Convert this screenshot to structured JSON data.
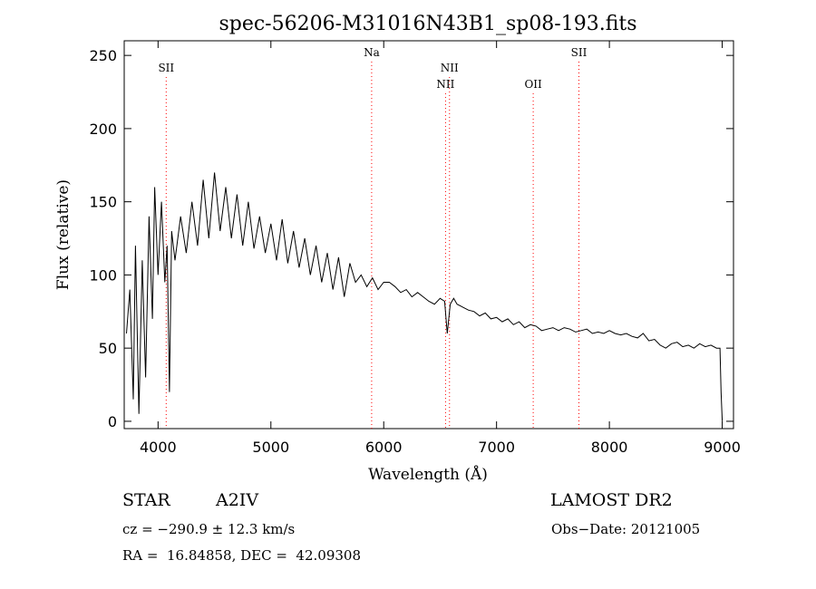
{
  "chart_data": {
    "type": "line",
    "title": "spec-56206-M31016N43B1_sp08-193.fits",
    "xlabel": "Wavelength (Å)",
    "ylabel": "Flux (relative)",
    "xlim": [
      3700,
      9100
    ],
    "ylim": [
      -5,
      260
    ],
    "xticks": [
      4000,
      5000,
      6000,
      7000,
      8000,
      9000
    ],
    "yticks": [
      0,
      50,
      100,
      150,
      200,
      250
    ],
    "grid": false,
    "line_color": "#000000",
    "marker_color": "#ff0000",
    "series": [
      {
        "x": [
          3720,
          3750,
          3780,
          3800,
          3830,
          3860,
          3890,
          3920,
          3950,
          3970,
          4000,
          4030,
          4060,
          4080,
          4101,
          4120,
          4150,
          4200,
          4250,
          4300,
          4350,
          4400,
          4450,
          4500,
          4550,
          4600,
          4650,
          4700,
          4750,
          4800,
          4850,
          4900,
          4950,
          5000,
          5050,
          5100,
          5150,
          5200,
          5250,
          5300,
          5350,
          5400,
          5450,
          5500,
          5550,
          5600,
          5650,
          5700,
          5750,
          5800,
          5850,
          5900,
          5950,
          6000,
          6050,
          6100,
          6150,
          6200,
          6250,
          6300,
          6350,
          6400,
          6450,
          6500,
          6540,
          6563,
          6590,
          6620,
          6650,
          6700,
          6750,
          6800,
          6850,
          6900,
          6950,
          7000,
          7050,
          7100,
          7150,
          7200,
          7250,
          7300,
          7350,
          7400,
          7450,
          7500,
          7550,
          7600,
          7650,
          7700,
          7750,
          7800,
          7850,
          7900,
          7950,
          8000,
          8050,
          8100,
          8150,
          8200,
          8250,
          8300,
          8350,
          8400,
          8450,
          8500,
          8550,
          8600,
          8650,
          8700,
          8750,
          8800,
          8850,
          8900,
          8950,
          8980,
          8990,
          9000
        ],
        "y": [
          60,
          90,
          15,
          120,
          5,
          110,
          30,
          140,
          70,
          160,
          100,
          150,
          95,
          120,
          20,
          130,
          110,
          140,
          115,
          150,
          120,
          165,
          125,
          170,
          130,
          160,
          125,
          155,
          120,
          150,
          118,
          140,
          115,
          135,
          110,
          138,
          108,
          130,
          105,
          125,
          100,
          120,
          95,
          115,
          90,
          112,
          85,
          108,
          95,
          100,
          92,
          98,
          90,
          95,
          95,
          92,
          88,
          90,
          85,
          88,
          85,
          82,
          80,
          84,
          82,
          60,
          80,
          84,
          80,
          78,
          76,
          75,
          72,
          74,
          70,
          71,
          68,
          70,
          66,
          68,
          64,
          66,
          65,
          62,
          63,
          64,
          62,
          64,
          63,
          61,
          62,
          63,
          60,
          61,
          60,
          62,
          60,
          59,
          60,
          58,
          57,
          60,
          55,
          56,
          52,
          50,
          53,
          54,
          51,
          52,
          50,
          53,
          51,
          52,
          50,
          50,
          20,
          0
        ]
      }
    ],
    "annotations": [
      {
        "label": "SII",
        "x": 4072,
        "row": 1
      },
      {
        "label": "Na",
        "x": 5893,
        "row": 0
      },
      {
        "label": "NII",
        "x": 6548,
        "row": 2
      },
      {
        "label": "NII",
        "x": 6583,
        "row": 1
      },
      {
        "label": "OII",
        "x": 7325,
        "row": 2
      },
      {
        "label": "SII",
        "x": 7730,
        "row": 0
      }
    ]
  },
  "info": {
    "object_class": "STAR",
    "subclass": "A2IV",
    "survey": "LAMOST DR2",
    "redshift_line": "cz = −290.9 ± 12.3 km/s",
    "obs_date_line": "Obs−Date: 20121005",
    "coords_line": "RA =  16.84858, DEC =  42.09308"
  }
}
